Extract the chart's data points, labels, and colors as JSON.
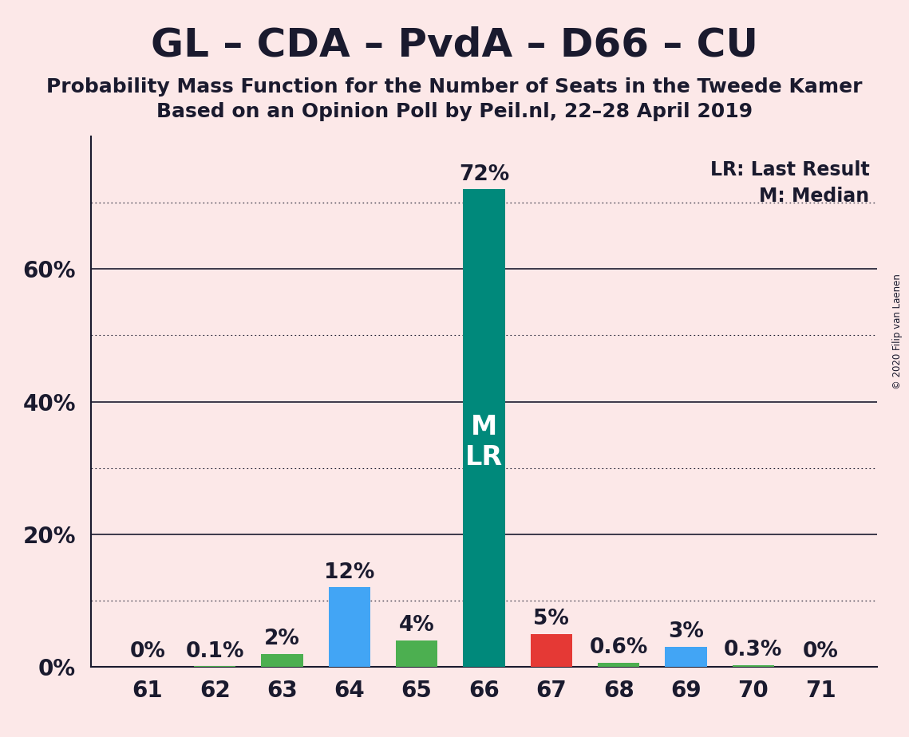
{
  "title": "GL – CDA – PvdA – D66 – CU",
  "subtitle1": "Probability Mass Function for the Number of Seats in the Tweede Kamer",
  "subtitle2": "Based on an Opinion Poll by Peil.nl, 22–28 April 2019",
  "copyright": "© 2020 Filip van Laenen",
  "seats": [
    61,
    62,
    63,
    64,
    65,
    66,
    67,
    68,
    69,
    70,
    71
  ],
  "probabilities": [
    0.0,
    0.1,
    2.0,
    12.0,
    4.0,
    72.0,
    5.0,
    0.6,
    3.0,
    0.3,
    0.0
  ],
  "bar_colors": [
    "#4caf50",
    "#4caf50",
    "#4caf50",
    "#42a5f5",
    "#4caf50",
    "#00897b",
    "#e53935",
    "#4caf50",
    "#42a5f5",
    "#4caf50",
    "#4caf50"
  ],
  "text_color": "#1a1a2e",
  "bar_labels": [
    "0%",
    "0.1%",
    "2%",
    "12%",
    "4%",
    "72%",
    "5%",
    "0.6%",
    "3%",
    "0.3%",
    "0%"
  ],
  "legend_lr": "LR: Last Result",
  "legend_m": "M: Median",
  "background_color": "#fce8e8",
  "ylim": [
    0,
    80
  ],
  "solid_gridlines": [
    20,
    40,
    60
  ],
  "dotted_gridlines": [
    10,
    30,
    50,
    70
  ],
  "ytick_positions": [
    0,
    20,
    40,
    60
  ],
  "ytick_labels": [
    "0%",
    "20%",
    "40%",
    "60%"
  ],
  "title_fontsize": 36,
  "subtitle_fontsize": 18,
  "tick_fontsize": 20,
  "bar_label_fontsize": 19,
  "legend_fontsize": 17,
  "ml_fontsize": 24
}
